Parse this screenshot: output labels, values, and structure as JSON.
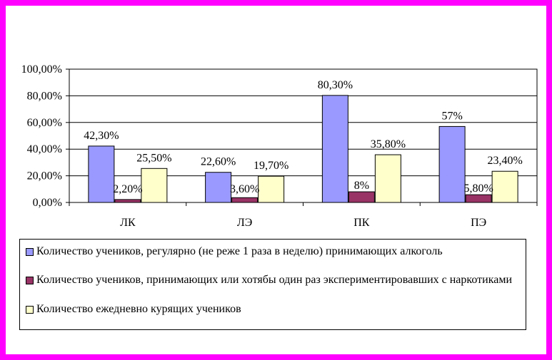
{
  "chart_data": {
    "type": "bar",
    "categories": [
      "ЛК",
      "ЛЭ",
      "ПК",
      "ПЭ"
    ],
    "series": [
      {
        "name": "Количество учеников, регулярно (не реже 1 раза в неделю) принимающих алкоголь",
        "color": "#9999ff",
        "values": [
          42.3,
          22.6,
          80.3,
          57
        ],
        "labels": [
          "42,30%",
          "22,60%",
          "80,30%",
          "57%"
        ]
      },
      {
        "name": "Количество учеников, принимающих или хотябы один раз экспериментировавших с наркотиками",
        "color": "#993366",
        "values": [
          2.2,
          3.6,
          8,
          5.8
        ],
        "labels": [
          "2,20%",
          "3,60%",
          "8%",
          "5,80%"
        ]
      },
      {
        "name": "Количество ежедневно курящих учеников",
        "color": "#ffffcc",
        "values": [
          25.5,
          19.7,
          35.8,
          23.4
        ],
        "labels": [
          "25,50%",
          "19,70%",
          "35,80%",
          "23,40%"
        ]
      }
    ],
    "yticks": [
      "0,00%",
      "20,00%",
      "40,00%",
      "60,00%",
      "80,00%",
      "100,00%"
    ],
    "ylim": [
      0,
      100
    ],
    "grid": true,
    "legend_position": "bottom"
  }
}
